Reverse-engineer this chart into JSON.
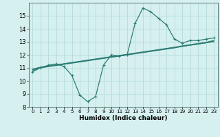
{
  "x": [
    0,
    1,
    2,
    3,
    4,
    5,
    6,
    7,
    8,
    9,
    10,
    11,
    12,
    13,
    14,
    15,
    16,
    17,
    18,
    19,
    20,
    21,
    22,
    23
  ],
  "y_main": [
    10.7,
    11.0,
    11.2,
    11.3,
    11.1,
    10.4,
    8.9,
    8.4,
    8.8,
    11.2,
    12.0,
    11.9,
    12.0,
    14.4,
    15.6,
    15.3,
    14.8,
    14.3,
    13.2,
    12.9,
    13.1,
    13.1,
    13.2,
    13.3
  ],
  "y_trend1": [
    10.75,
    11.03,
    11.12,
    11.21,
    11.3,
    11.39,
    11.48,
    11.57,
    11.66,
    11.75,
    11.84,
    11.93,
    12.02,
    12.11,
    12.2,
    12.29,
    12.38,
    12.47,
    12.56,
    12.65,
    12.74,
    12.83,
    12.92,
    13.01
  ],
  "y_trend2": [
    10.85,
    11.0,
    11.09,
    11.18,
    11.27,
    11.36,
    11.45,
    11.54,
    11.63,
    11.72,
    11.81,
    11.9,
    11.99,
    12.08,
    12.17,
    12.26,
    12.35,
    12.44,
    12.53,
    12.65,
    12.74,
    12.83,
    12.92,
    13.05
  ],
  "y_trend3": [
    10.9,
    11.05,
    11.14,
    11.23,
    11.32,
    11.41,
    11.5,
    11.59,
    11.68,
    11.77,
    11.86,
    11.95,
    12.04,
    12.13,
    12.22,
    12.31,
    12.4,
    12.49,
    12.58,
    12.69,
    12.78,
    12.87,
    12.96,
    13.1
  ],
  "color": "#2d7d74",
  "bg_color": "#d6efef",
  "grid_color": "#b8dede",
  "xlabel": "Humidex (Indice chaleur)",
  "ylim": [
    8,
    16
  ],
  "xlim": [
    -0.5,
    23.5
  ],
  "yticks": [
    8,
    9,
    10,
    11,
    12,
    13,
    14,
    15
  ],
  "xticks": [
    0,
    1,
    2,
    3,
    4,
    5,
    6,
    7,
    8,
    9,
    10,
    11,
    12,
    13,
    14,
    15,
    16,
    17,
    18,
    19,
    20,
    21,
    22,
    23
  ],
  "xlabel_fontsize": 6.5,
  "tick_fontsize": 6.0
}
